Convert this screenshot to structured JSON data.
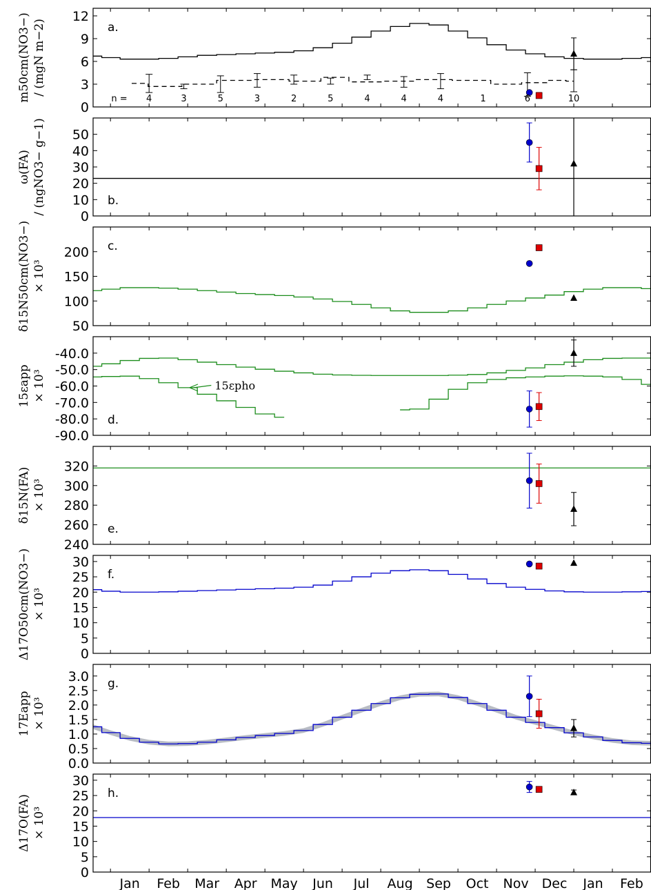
{
  "months": [
    "Jan",
    "Feb",
    "Mar",
    "Apr",
    "May",
    "Jun",
    "Jul",
    "Aug",
    "Sep",
    "Oct",
    "Nov",
    "Dec",
    "Jan",
    "Feb"
  ],
  "chart_data": [
    {
      "panel": "a.",
      "type": "line",
      "ylabel_lines": [
        "m50cm(NO3−)",
        "/ (mgN m−2)"
      ],
      "ylim": [
        0,
        13
      ],
      "yticks": [
        0,
        3,
        6,
        9,
        12
      ],
      "series": [
        {
          "style": "solid",
          "color": "#000000",
          "x": [
            -0.45,
            0,
            0.5,
            1,
            1.5,
            2,
            2.5,
            3,
            3.5,
            4,
            4.5,
            5,
            5.5,
            6,
            6.5,
            7,
            7.5,
            8,
            8.5,
            9,
            9.5,
            10,
            10.5,
            11,
            11.5,
            12,
            12.5,
            13,
            13.5,
            14
          ],
          "y": [
            6.7,
            6.5,
            6.3,
            6.3,
            6.4,
            6.6,
            6.8,
            6.9,
            7.0,
            7.1,
            7.2,
            7.4,
            7.8,
            8.4,
            9.2,
            10.0,
            10.6,
            11.0,
            10.8,
            10.0,
            9.1,
            8.2,
            7.5,
            7.0,
            6.6,
            6.4,
            6.3,
            6.3,
            6.4,
            6.5
          ]
        },
        {
          "style": "dashed",
          "color": "#000000",
          "x": [
            0.55,
            1.4,
            2.3,
            3.2,
            4.15,
            5.1,
            5.8,
            6.55,
            7.5,
            8.3,
            9.4,
            10.3,
            11.0,
            11.6,
            12.0
          ],
          "y": [
            3.1,
            2.7,
            3.0,
            3.5,
            3.6,
            3.4,
            3.9,
            3.3,
            3.4,
            3.6,
            3.5,
            3.0,
            3.2,
            3.5,
            3.4
          ]
        }
      ],
      "errorbars": [
        {
          "x": 1.0,
          "y": 3.1,
          "lo": 1.9,
          "hi": 4.3
        },
        {
          "x": 1.9,
          "y": 2.7,
          "lo": 2.4,
          "hi": 3.0
        },
        {
          "x": 2.85,
          "y": 3.0,
          "lo": 1.9,
          "hi": 4.1
        },
        {
          "x": 3.8,
          "y": 3.5,
          "lo": 2.6,
          "hi": 4.4
        },
        {
          "x": 4.75,
          "y": 3.6,
          "lo": 3.0,
          "hi": 4.2
        },
        {
          "x": 5.7,
          "y": 3.4,
          "lo": 3.0,
          "hi": 3.8
        },
        {
          "x": 6.65,
          "y": 3.9,
          "lo": 3.6,
          "hi": 4.2
        },
        {
          "x": 7.6,
          "y": 3.3,
          "lo": 2.6,
          "hi": 4.0
        },
        {
          "x": 8.55,
          "y": 3.4,
          "lo": 2.4,
          "hi": 4.4
        },
        {
          "x": 10.8,
          "y": 3.0,
          "lo": 1.4,
          "hi": 4.5
        },
        {
          "x": 12.0,
          "y": 3.4,
          "lo": 2.0,
          "hi": 4.9
        }
      ],
      "n_prefix": "n =",
      "n_labels": [
        {
          "x": 1.0,
          "text": "4"
        },
        {
          "x": 1.9,
          "text": "3"
        },
        {
          "x": 2.85,
          "text": "5"
        },
        {
          "x": 3.8,
          "text": "3"
        },
        {
          "x": 4.75,
          "text": "2"
        },
        {
          "x": 5.7,
          "text": "5"
        },
        {
          "x": 6.65,
          "text": "4"
        },
        {
          "x": 7.6,
          "text": "4"
        },
        {
          "x": 8.55,
          "text": "4"
        },
        {
          "x": 9.65,
          "text": "1"
        },
        {
          "x": 10.8,
          "text": "6"
        },
        {
          "x": 12.0,
          "text": "10"
        }
      ],
      "points": [
        {
          "marker": "circle",
          "color": "#0000cc",
          "x": 10.85,
          "y": 1.9,
          "lo": null,
          "hi": null
        },
        {
          "marker": "square",
          "color": "#dd0000",
          "x": 11.1,
          "y": 1.5,
          "lo": 1.2,
          "hi": 1.9
        },
        {
          "marker": "triangle",
          "color": "#000000",
          "x": 12.0,
          "y": 7.0,
          "lo": 4.9,
          "hi": 9.1
        }
      ]
    },
    {
      "panel": "b.",
      "type": "line",
      "ylabel_lines": [
        "ω(FA)",
        "/ (ngNO3− g−1)"
      ],
      "ylim": [
        0,
        60
      ],
      "yticks": [
        0,
        10,
        20,
        30,
        40,
        50
      ],
      "series": [
        {
          "style": "solid",
          "color": "#000000",
          "x": [
            -0.45,
            14
          ],
          "y": [
            23,
            23
          ]
        }
      ],
      "points": [
        {
          "marker": "circle",
          "color": "#0000cc",
          "x": 10.85,
          "y": 45,
          "lo": 33,
          "hi": 57
        },
        {
          "marker": "square",
          "color": "#dd0000",
          "x": 11.1,
          "y": 29,
          "lo": 16,
          "hi": 42
        },
        {
          "marker": "triangle",
          "color": "#000000",
          "x": 12.0,
          "y": 32,
          "lo": 0,
          "hi": 60
        }
      ]
    },
    {
      "panel": "c.",
      "type": "line",
      "ylabel_lines": [
        "δ15N50cm(NO3−)",
        "× 10³"
      ],
      "ylim": [
        50,
        250
      ],
      "yticks": [
        50,
        100,
        150,
        200
      ],
      "series": [
        {
          "style": "solid",
          "color": "#1a8c1a",
          "x": [
            -0.45,
            0,
            0.5,
            1,
            1.5,
            2,
            2.5,
            3,
            3.5,
            4,
            4.5,
            5,
            5.5,
            6,
            6.5,
            7,
            7.5,
            8,
            8.5,
            9,
            9.5,
            10,
            10.5,
            11,
            11.5,
            12,
            12.5,
            13,
            13.5,
            14
          ],
          "y": [
            121,
            124,
            127,
            127,
            126,
            124,
            121,
            118,
            115,
            113,
            111,
            108,
            104,
            99,
            93,
            86,
            80,
            77,
            77,
            80,
            86,
            93,
            100,
            106,
            112,
            119,
            124,
            127,
            127,
            125
          ]
        }
      ],
      "points": [
        {
          "marker": "circle",
          "color": "#0000cc",
          "x": 10.85,
          "y": 176,
          "lo": null,
          "hi": null
        },
        {
          "marker": "square",
          "color": "#dd0000",
          "x": 11.1,
          "y": 208,
          "lo": null,
          "hi": null
        },
        {
          "marker": "triangle",
          "color": "#000000",
          "x": 12.0,
          "y": 106,
          "lo": null,
          "hi": null
        }
      ]
    },
    {
      "panel": "d.",
      "type": "line",
      "ylabel_lines": [
        "15εapp",
        "× 10³"
      ],
      "ylim": [
        -90,
        -30
      ],
      "yticks": [
        -90,
        -80,
        -70,
        -60,
        -50,
        -40
      ],
      "annotation": {
        "text": "15εpho",
        "x": 2.7,
        "y": -60,
        "arrow_to_x": 2.05,
        "arrow_to_y": -61
      },
      "series": [
        {
          "style": "solid",
          "color": "#1a8c1a",
          "x": [
            -0.45,
            0,
            0.5,
            1,
            1.5,
            2,
            2.5,
            3,
            3.5,
            4,
            4.5,
            5,
            5.5,
            6,
            6.5,
            7,
            7.5,
            8,
            8.5,
            9,
            9.5,
            10,
            10.5,
            11,
            11.5,
            12,
            12.5,
            13,
            13.5,
            14
          ],
          "y": [
            -48,
            -46.5,
            -44.5,
            -43.2,
            -43,
            -44,
            -45.5,
            -47,
            -48.5,
            -49.8,
            -51,
            -52,
            -52.8,
            -53.3,
            -53.5,
            -53.6,
            -53.6,
            -53.6,
            -53.6,
            -53.4,
            -53,
            -52,
            -50.5,
            -49,
            -47,
            -45.5,
            -44,
            -43.2,
            -43,
            -43
          ]
        },
        {
          "style": "solid",
          "color": "#1a8c1a",
          "x": [
            -0.45,
            0,
            0.5,
            1,
            1.5,
            2,
            2.5,
            3,
            3.5,
            4,
            4.5
          ],
          "y": [
            -54.5,
            -54.2,
            -54,
            -55.5,
            -58,
            -61,
            -65,
            -69,
            -73,
            -77,
            -79
          ]
        },
        {
          "style": "solid",
          "color": "#1a8c1a",
          "x": [
            7.5,
            8,
            8.5,
            9,
            9.5,
            10,
            10.5,
            11,
            11.5,
            12,
            12.5,
            13,
            13.5,
            14
          ],
          "y": [
            -74.5,
            -74,
            -68,
            -62,
            -58,
            -56,
            -55,
            -54.5,
            -54,
            -53.8,
            -54,
            -54.5,
            -56,
            -59
          ]
        }
      ],
      "points": [
        {
          "marker": "circle",
          "color": "#0000cc",
          "x": 10.85,
          "y": -74,
          "lo": -85,
          "hi": -63
        },
        {
          "marker": "square",
          "color": "#dd0000",
          "x": 11.1,
          "y": -72.5,
          "lo": -81,
          "hi": -64
        },
        {
          "marker": "triangle",
          "color": "#000000",
          "x": 12.0,
          "y": -40,
          "lo": -48,
          "hi": -32
        }
      ]
    },
    {
      "panel": "e.",
      "type": "line",
      "ylabel_lines": [
        "δ15N(FA)",
        "× 10³"
      ],
      "ylim": [
        240,
        340
      ],
      "yticks": [
        240,
        260,
        280,
        300,
        320
      ],
      "series": [
        {
          "style": "solid",
          "color": "#1a8c1a",
          "x": [
            -0.45,
            14
          ],
          "y": [
            318,
            318
          ]
        }
      ],
      "points": [
        {
          "marker": "circle",
          "color": "#0000cc",
          "x": 10.85,
          "y": 305,
          "lo": 277,
          "hi": 333
        },
        {
          "marker": "square",
          "color": "#dd0000",
          "x": 11.1,
          "y": 302,
          "lo": 282,
          "hi": 322
        },
        {
          "marker": "triangle",
          "color": "#000000",
          "x": 12.0,
          "y": 276,
          "lo": 259,
          "hi": 293
        }
      ]
    },
    {
      "panel": "f.",
      "type": "line",
      "ylabel_lines": [
        "Δ17O50cm(NO3−)",
        "× 10³"
      ],
      "ylim": [
        0,
        32
      ],
      "yticks": [
        0,
        5,
        10,
        15,
        20,
        25,
        30
      ],
      "series": [
        {
          "style": "solid",
          "color": "#0000cc",
          "x": [
            -0.45,
            0,
            0.5,
            1,
            1.5,
            2,
            2.5,
            3,
            3.5,
            4,
            4.5,
            5,
            5.5,
            6,
            6.5,
            7,
            7.5,
            8,
            8.5,
            9,
            9.5,
            10,
            10.5,
            11,
            11.5,
            12,
            12.5,
            13,
            13.5,
            14
          ],
          "y": [
            20.8,
            20.3,
            20.0,
            20.0,
            20.1,
            20.3,
            20.5,
            20.7,
            20.9,
            21.1,
            21.3,
            21.6,
            22.3,
            23.6,
            25.0,
            26.2,
            27.0,
            27.3,
            27.0,
            25.8,
            24.3,
            22.8,
            21.6,
            20.9,
            20.4,
            20.1,
            20.0,
            20.0,
            20.1,
            20.2
          ]
        }
      ],
      "points": [
        {
          "marker": "circle",
          "color": "#0000cc",
          "x": 10.85,
          "y": 29.2,
          "lo": null,
          "hi": null
        },
        {
          "marker": "square",
          "color": "#dd0000",
          "x": 11.1,
          "y": 28.5,
          "lo": null,
          "hi": null
        },
        {
          "marker": "triangle",
          "color": "#000000",
          "x": 12.0,
          "y": 29.5,
          "lo": null,
          "hi": null
        }
      ]
    },
    {
      "panel": "g.",
      "type": "area",
      "ylabel_lines": [
        "17Eapp",
        "× 10³"
      ],
      "ylim": [
        0.0,
        3.4
      ],
      "yticks": [
        0.0,
        0.5,
        1.0,
        1.5,
        2.0,
        2.5,
        3.0
      ],
      "band_halfwidth": 0.08,
      "series": [
        {
          "style": "solid",
          "color": "#0000cc",
          "band_color": "#b8bcc4",
          "x": [
            -0.45,
            0,
            0.5,
            1,
            1.5,
            2,
            2.5,
            3,
            3.5,
            4,
            4.5,
            5,
            5.5,
            6,
            6.5,
            7,
            7.5,
            8,
            8.5,
            9,
            9.5,
            10,
            10.5,
            11,
            11.5,
            12,
            12.5,
            13,
            13.5,
            14
          ],
          "y": [
            1.25,
            1.05,
            0.85,
            0.72,
            0.66,
            0.67,
            0.72,
            0.8,
            0.88,
            0.95,
            1.02,
            1.12,
            1.33,
            1.58,
            1.82,
            2.05,
            2.25,
            2.37,
            2.38,
            2.26,
            2.05,
            1.82,
            1.58,
            1.4,
            1.22,
            1.04,
            0.9,
            0.78,
            0.7,
            0.68
          ]
        }
      ],
      "points": [
        {
          "marker": "circle",
          "color": "#0000cc",
          "x": 10.85,
          "y": 2.3,
          "lo": 1.6,
          "hi": 3.0
        },
        {
          "marker": "square",
          "color": "#dd0000",
          "x": 11.1,
          "y": 1.7,
          "lo": 1.2,
          "hi": 2.2
        },
        {
          "marker": "triangle",
          "color": "#000000",
          "x": 12.0,
          "y": 1.2,
          "lo": 0.9,
          "hi": 1.5
        }
      ]
    },
    {
      "panel": "h.",
      "type": "line",
      "ylabel_lines": [
        "Δ17O(FA)",
        "× 10³"
      ],
      "ylim": [
        0,
        32
      ],
      "yticks": [
        0,
        5,
        10,
        15,
        20,
        25,
        30
      ],
      "series": [
        {
          "style": "solid",
          "color": "#0000cc",
          "x": [
            -0.45,
            14
          ],
          "y": [
            17.8,
            17.8
          ]
        }
      ],
      "points": [
        {
          "marker": "circle",
          "color": "#0000cc",
          "x": 10.85,
          "y": 27.8,
          "lo": 26.0,
          "hi": 29.6
        },
        {
          "marker": "square",
          "color": "#dd0000",
          "x": 11.1,
          "y": 27.0,
          "lo": 26.4,
          "hi": 27.6
        },
        {
          "marker": "triangle",
          "color": "#000000",
          "x": 12.0,
          "y": 26.0,
          "lo": 25.3,
          "hi": 26.8
        }
      ]
    }
  ]
}
